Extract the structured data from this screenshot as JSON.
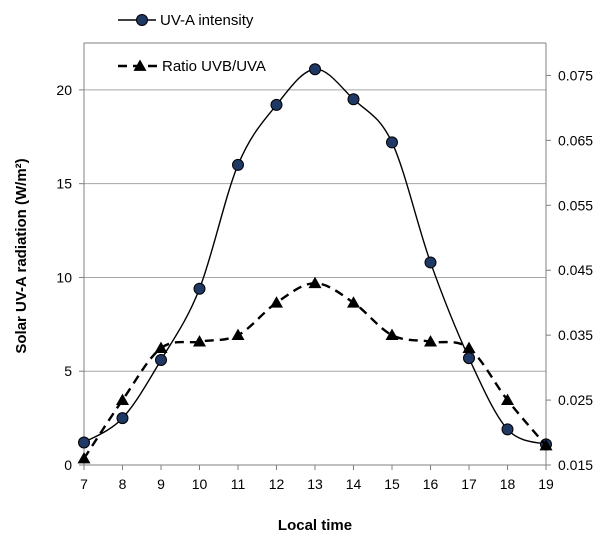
{
  "chart_data": {
    "type": "line",
    "xlabel": "Local time",
    "ylabel": "Solar UV-A radiation (W/m²)",
    "x": [
      7,
      8,
      9,
      10,
      11,
      12,
      13,
      14,
      15,
      16,
      17,
      18,
      19
    ],
    "xlim": [
      7,
      19
    ],
    "ylim": [
      0,
      22.5
    ],
    "y2lim": [
      0.015,
      0.08
    ],
    "yticks": [
      0,
      5,
      10,
      15,
      20
    ],
    "y2ticks": [
      0.015,
      0.025,
      0.035,
      0.045,
      0.055,
      0.065,
      0.075
    ],
    "y2tick_labels": [
      "0.015",
      "0.025",
      "0.035",
      "0.045",
      "0.055",
      "0.065",
      "0.075"
    ],
    "grid": "horizontal",
    "legend_position": "top-left",
    "series": [
      {
        "name": "UV-A intensity",
        "axis": "left",
        "marker": "circle",
        "line_style": "solid",
        "smooth": true,
        "values": [
          1.2,
          2.5,
          5.6,
          9.4,
          16.0,
          19.2,
          21.1,
          19.5,
          17.2,
          10.8,
          5.7,
          1.9,
          1.1
        ]
      },
      {
        "name": "Ratio UVB/UVA",
        "axis": "right",
        "marker": "triangle",
        "line_style": "dashed",
        "smooth": true,
        "values": [
          0.016,
          0.025,
          0.033,
          0.034,
          0.035,
          0.04,
          0.043,
          0.04,
          0.035,
          0.034,
          0.033,
          0.025,
          0.018
        ]
      }
    ],
    "colors": {
      "line": "#000000",
      "grid": "#a6a6a6",
      "axis": "#808080"
    }
  }
}
